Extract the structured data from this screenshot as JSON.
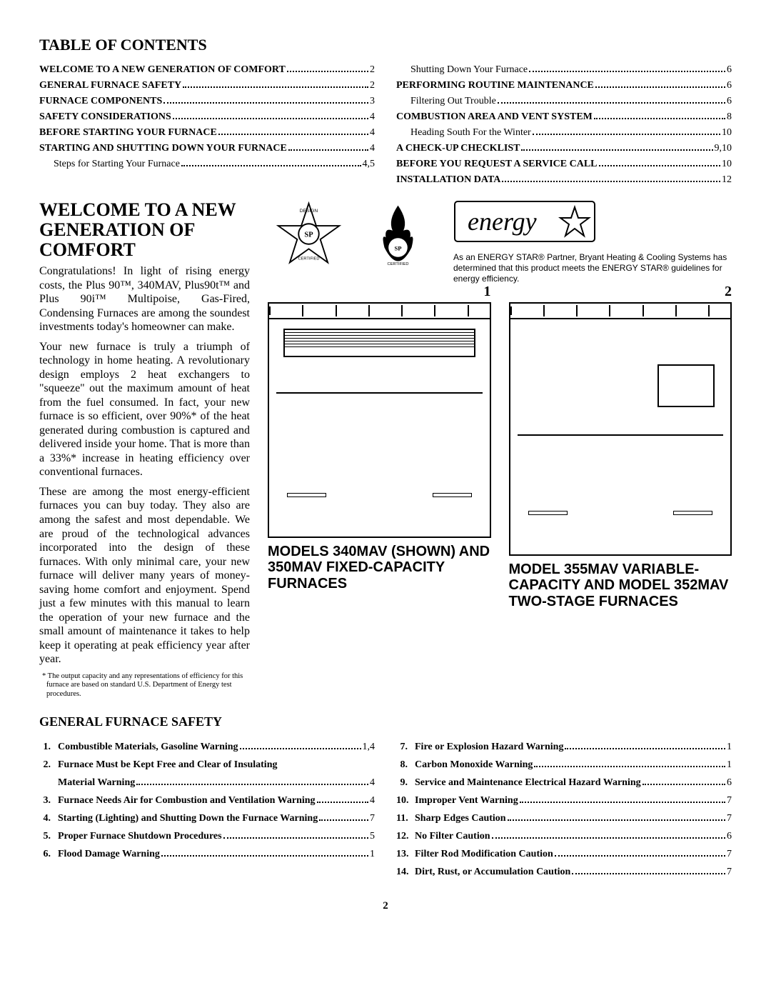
{
  "toc_title": "TABLE OF CONTENTS",
  "toc_left": [
    {
      "label": "WELCOME TO A NEW GENERATION OF COMFORT",
      "page": "2",
      "bold": true
    },
    {
      "label": "GENERAL FURNACE SAFETY",
      "page": "2",
      "bold": true
    },
    {
      "label": "FURNACE COMPONENTS",
      "page": "3",
      "bold": true
    },
    {
      "label": "SAFETY CONSIDERATIONS",
      "page": "4",
      "bold": true
    },
    {
      "label": "BEFORE STARTING YOUR FURNACE",
      "page": "4",
      "bold": true
    },
    {
      "label": "STARTING AND SHUTTING DOWN YOUR FURNACE",
      "page": "4",
      "bold": true
    },
    {
      "label": "Steps for Starting Your Furnace",
      "page": "4,5",
      "sub": true
    }
  ],
  "toc_right": [
    {
      "label": "Shutting Down Your Furnace",
      "page": "6",
      "sub": true
    },
    {
      "label": "PERFORMING ROUTINE MAINTENANCE",
      "page": "6",
      "bold": true
    },
    {
      "label": "Filtering Out Trouble",
      "page": "6",
      "sub": true
    },
    {
      "label": "COMBUSTION AREA AND VENT SYSTEM",
      "page": "8",
      "bold": true
    },
    {
      "label": "Heading South For the Winter",
      "page": "10",
      "sub": true
    },
    {
      "label": "A CHECK-UP CHECKLIST",
      "page": "9,10",
      "bold": true
    },
    {
      "label": "BEFORE YOU REQUEST A SERVICE CALL",
      "page": "10",
      "bold": true
    },
    {
      "label": "INSTALLATION DATA",
      "page": "12",
      "bold": true
    }
  ],
  "welcome_title": "WELCOME TO A NEW GENERATION OF COMFORT",
  "para1": "Congratulations! In light of rising energy costs, the Plus 90™, 340MAV, Plus90t™ and Plus 90i™ Multipoise, Gas-Fired, Condensing Furnaces are among the soundest investments today's homeowner can make.",
  "para2": "Your new furnace is truly a triumph of technology in home heating. A revolutionary design employs 2 heat exchangers to \"squeeze\" out the maximum amount of heat from the fuel consumed. In fact, your new furnace is so efficient, over 90%* of the heat generated during combustion is captured and delivered inside your home. That is more than a 33%* increase in heating efficiency over conventional furnaces.",
  "para3": "These are among the most energy-efficient furnaces you can buy today. They also are among the safest and most dependable. We are proud of the technological advances incorporated into the design of these furnaces. With only minimal care, your new furnace will deliver many years of money-saving home comfort and enjoyment. Spend just a few minutes with this manual to learn the operation of your new furnace and the small amount of maintenance it takes to help keep it operating at peak efficiency year after year.",
  "footnote": "* The output capacity and any representations of efficiency for this furnace are based on standard U.S. Department of Energy test procedures.",
  "energy_text": "As an ENERGY STAR® Partner, Bryant Heating & Cooling Systems has determined that this product meets the ENERGY STAR® guidelines for energy efficiency.",
  "furnace1_num": "1",
  "furnace2_num": "2",
  "furnace1_caption": "MODELS 340MAV (SHOWN) AND 350MAV FIXED-CAPACITY FURNACES",
  "furnace2_caption": "MODEL 355MAV VARIABLE-CAPACITY AND MODEL 352MAV TWO-STAGE FURNACES",
  "safety_title": "GENERAL FURNACE SAFETY",
  "safety_left": [
    {
      "n": "1.",
      "label": "Combustible Materials, Gasoline Warning",
      "page": "1,4"
    },
    {
      "n": "2.",
      "label": "Furnace Must be Kept Free and Clear of Insulating",
      "cont": "Material Warning",
      "page": "4"
    },
    {
      "n": "3.",
      "label": "Furnace Needs Air for Combustion and Ventilation Warning",
      "page": "4"
    },
    {
      "n": "4.",
      "label": "Starting (Lighting) and Shutting Down the Furnace Warning",
      "page": "7"
    },
    {
      "n": "5.",
      "label": "Proper Furnace Shutdown Procedures",
      "page": "5"
    },
    {
      "n": "6.",
      "label": "Flood Damage Warning",
      "page": "1"
    }
  ],
  "safety_right": [
    {
      "n": "7.",
      "label": "Fire or Explosion Hazard Warning",
      "page": "1"
    },
    {
      "n": "8.",
      "label": "Carbon Monoxide Warning",
      "page": "1"
    },
    {
      "n": "9.",
      "label": "Service and Maintenance Electrical Hazard Warning",
      "page": "6"
    },
    {
      "n": "10.",
      "label": "Improper Vent Warning",
      "page": "7"
    },
    {
      "n": "11.",
      "label": "Sharp Edges Caution",
      "page": "7"
    },
    {
      "n": "12.",
      "label": "No Filter Caution",
      "page": "6"
    },
    {
      "n": "13.",
      "label": "Filter Rod Modification Caution",
      "page": "7"
    },
    {
      "n": "14.",
      "label": "Dirt, Rust, or Accumulation Caution",
      "page": "7"
    }
  ],
  "page_number": "2",
  "badge_design": "DESIGN",
  "badge_cert": "CERTIFIED",
  "energy_logo": "energy"
}
